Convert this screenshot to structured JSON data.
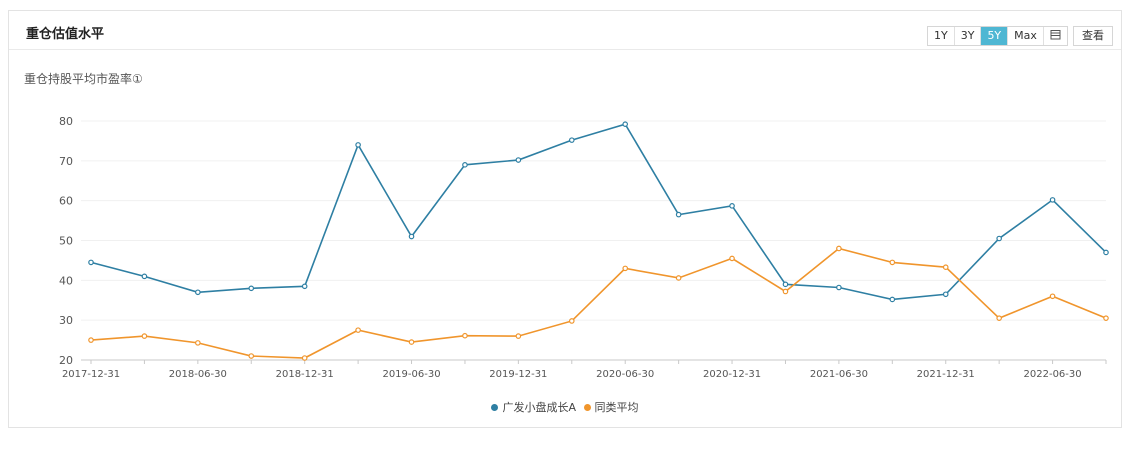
{
  "header": {
    "title": "重仓估值水平",
    "ranges": [
      "1Y",
      "3Y",
      "5Y",
      "Max"
    ],
    "active_range": "5Y",
    "calendar_icon": "calendar-icon",
    "view_label": "查看"
  },
  "colors": {
    "series_a": "#2e7fa3",
    "series_b": "#f0952c",
    "active_button": "#4fb7d3"
  },
  "chart_data": {
    "type": "line",
    "title": "重仓持股平均市盈率①",
    "xlabel": "",
    "ylabel": "",
    "ylim": [
      20,
      80
    ],
    "yticks": [
      20,
      30,
      40,
      50,
      60,
      70,
      80
    ],
    "x": [
      "2017-12-31",
      "2018-03-31",
      "2018-06-30",
      "2018-09-30",
      "2018-12-31",
      "2019-03-31",
      "2019-06-30",
      "2019-09-30",
      "2019-12-31",
      "2020-03-31",
      "2020-06-30",
      "2020-09-30",
      "2020-12-31",
      "2021-03-31",
      "2021-06-30",
      "2021-09-30",
      "2021-12-31",
      "2022-03-31",
      "2022-06-30",
      "2022-09-30"
    ],
    "xtick_labels": [
      "2017-12-31",
      "2018-06-30",
      "2018-12-31",
      "2019-06-30",
      "2019-12-31",
      "2020-06-30",
      "2020-12-31",
      "2021-06-30",
      "2021-12-31",
      "2022-06-30"
    ],
    "series": [
      {
        "name": "广发小盘成长A",
        "values": [
          44.5,
          41,
          37,
          38,
          38.5,
          74,
          51,
          69,
          70.2,
          75.2,
          79.2,
          56.5,
          58.7,
          39,
          38.2,
          35.2,
          36.5,
          50.5,
          60.2,
          47
        ]
      },
      {
        "name": "同类平均",
        "values": [
          25,
          26,
          24.3,
          21,
          20.5,
          27.5,
          24.5,
          26.1,
          26,
          29.8,
          43,
          40.6,
          45.5,
          37.2,
          48,
          44.5,
          43.3,
          30.5,
          36,
          30.5
        ]
      }
    ],
    "grid": true,
    "legend": "bottom-center"
  }
}
